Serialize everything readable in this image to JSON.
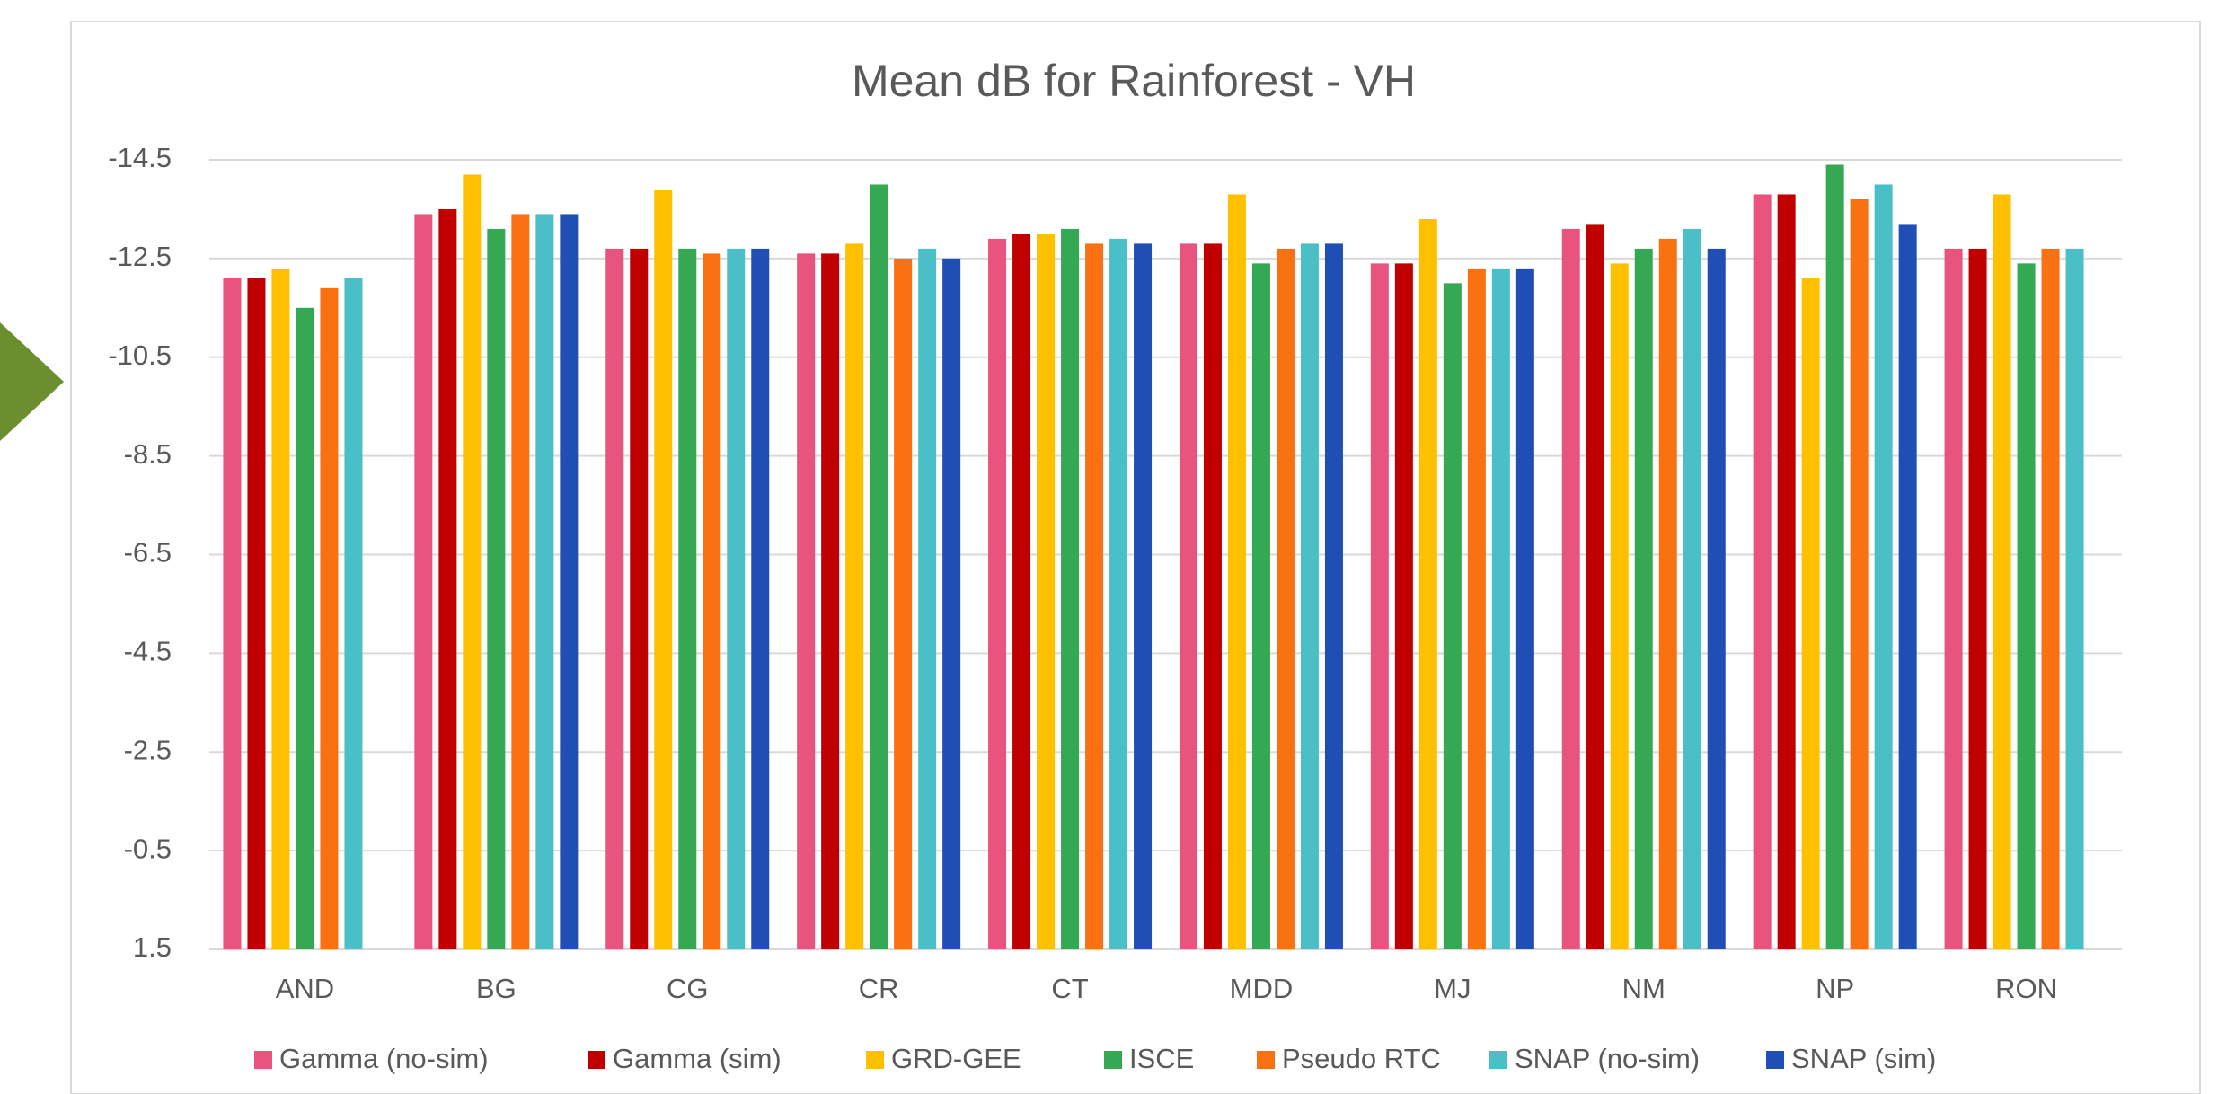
{
  "chart_data": {
    "type": "bar",
    "title": "Mean dB for Rainforest - VH",
    "categories": [
      "AND",
      "BG",
      "CG",
      "CR",
      "CT",
      "MDD",
      "MJ",
      "NM",
      "NP",
      "RON"
    ],
    "series": [
      {
        "name": "Gamma (no-sim)",
        "color": "#e8547e",
        "values": [
          -12.1,
          -13.4,
          -12.7,
          -12.6,
          -12.9,
          -12.8,
          -12.4,
          -13.1,
          -13.8,
          -12.7
        ]
      },
      {
        "name": "Gamma (sim)",
        "color": "#c00000",
        "values": [
          -12.1,
          -13.5,
          -12.7,
          -12.6,
          -13.0,
          -12.8,
          -12.4,
          -13.2,
          -13.8,
          -12.7
        ]
      },
      {
        "name": "GRD-GEE",
        "color": "#ffc000",
        "values": [
          -12.3,
          -14.2,
          -13.9,
          -12.8,
          -13.0,
          -13.8,
          -13.3,
          -12.4,
          -12.1,
          -13.8
        ]
      },
      {
        "name": "ISCE",
        "color": "#35a853",
        "values": [
          -11.5,
          -13.1,
          -12.7,
          -14.0,
          -13.1,
          -12.4,
          -12.0,
          -12.7,
          -14.4,
          -12.4
        ]
      },
      {
        "name": "Pseudo RTC",
        "color": "#fa7112",
        "values": [
          -11.9,
          -13.4,
          -12.6,
          -12.5,
          -12.8,
          -12.7,
          -12.3,
          -12.9,
          -13.7,
          -12.7
        ]
      },
      {
        "name": "SNAP (no-sim)",
        "color": "#4bbfc8",
        "values": [
          -12.1,
          -13.4,
          -12.7,
          -12.7,
          -12.9,
          -12.8,
          -12.3,
          -13.1,
          -14.0,
          -12.7
        ]
      },
      {
        "name": "SNAP (sim)",
        "color": "#1f4eb4",
        "values": [
          null,
          -13.4,
          -12.7,
          -12.5,
          -12.8,
          -12.8,
          -12.3,
          -12.7,
          -13.2,
          null
        ]
      }
    ],
    "ylim": [
      1.5,
      -14.5
    ],
    "yticks": [
      1.5,
      -0.5,
      -2.5,
      -4.5,
      -6.5,
      -8.5,
      -10.5,
      -12.5,
      -14.5
    ],
    "grid": true,
    "legend": "bottom"
  }
}
